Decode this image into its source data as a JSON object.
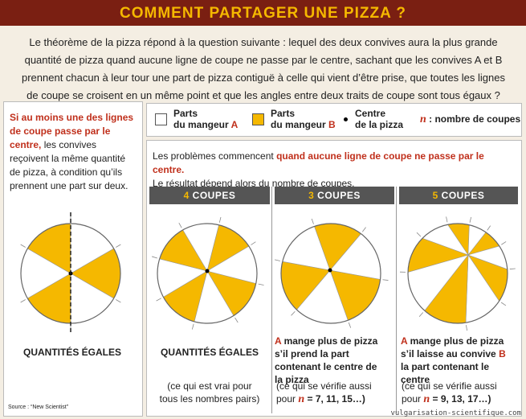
{
  "header": {
    "title": "COMMENT PARTAGER UNE PIZZA ?"
  },
  "intro": "Le théorème de la pizza répond à la question suivante : lequel des deux convives aura la plus grande quantité de pizza quand aucune ligne de coupe ne passe par le centre, sachant que les convives A et B prennent chacun à leur tour une part de pizza contiguë à celle qui vient d’être prise, que toutes les lignes de coupe se croisent en un même point et que les angles entre deux traits de coupe sont tous égaux ? Alors, qui ?",
  "left_panel": {
    "text": [
      "Si au moins une des lignes de coupe passe par le centre,",
      " les convives reçoivent la même quantité de pizza, à condition qu’ils prennent une part sur deux."
    ],
    "result": "QUANTITÉS ÉGALES",
    "source": "Source : “New Scientist”"
  },
  "legend": [
    {
      "label": [
        "Parts",
        "du mangeur ",
        "A"
      ]
    },
    {
      "label": [
        "Parts",
        "du mangeur ",
        "B"
      ]
    },
    {
      "label": [
        "Centre",
        "de la pizza"
      ]
    },
    {
      "label": [
        "n",
        " : nombre de coupes"
      ]
    }
  ],
  "main_panel": {
    "text": [
      "Les problèmes commencent ",
      "quand aucune ligne de coupe ne passe par le centre.",
      "Le résultat dépend alors du nombre de coupes."
    ]
  },
  "columns": [
    {
      "header": [
        "4",
        " COUPES"
      ],
      "result": [
        "QUANTITÉS ÉGALES"
      ],
      "note": [
        "(ce qui est vrai pour tous les nombres pairs)"
      ]
    },
    {
      "header": [
        "3",
        " COUPES"
      ],
      "result": [
        "A",
        " mange plus de pizza s’il prend la part contenant le centre de la pizza"
      ],
      "note": [
        "(ce qui se vérifie aussi pour ",
        "n",
        " = 7, 11, 15…)"
      ]
    },
    {
      "header": [
        "5",
        " COUPES"
      ],
      "result": [
        "A",
        " mange plus de pizza s’il laisse au convive ",
        "B",
        " la part contenant le centre"
      ],
      "note": [
        "(ce qui se vérifie aussi pour ",
        "n",
        " = 9, 13, 17…)"
      ]
    }
  ],
  "footer": {
    "site": "vulgarisation-scientifique.com"
  }
}
